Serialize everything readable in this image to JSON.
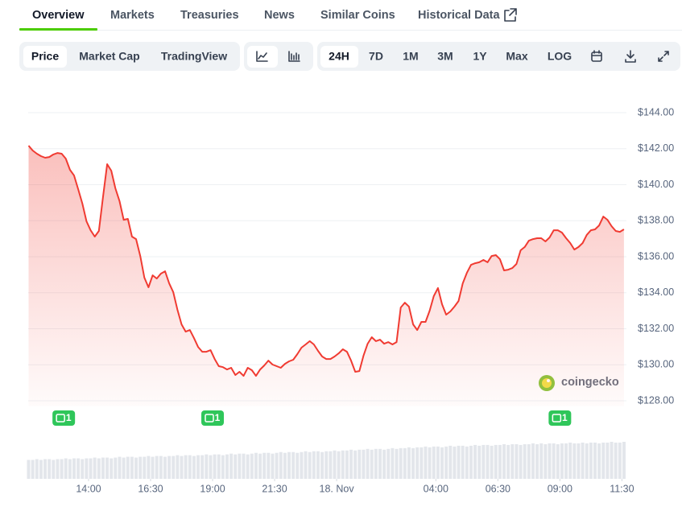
{
  "tabs": [
    "Overview",
    "Markets",
    "Treasuries",
    "News",
    "Similar Coins",
    "Historical Data"
  ],
  "toolbar": {
    "views": [
      "Price",
      "Market Cap",
      "TradingView"
    ],
    "ranges": [
      "24H",
      "7D",
      "1M",
      "3M",
      "1Y",
      "Max"
    ],
    "scale": "LOG"
  },
  "chart_data": {
    "type": "line",
    "x": [
      695,
      705,
      715,
      725,
      735,
      745,
      755,
      765,
      775,
      785,
      795,
      805,
      815,
      825,
      835,
      845,
      855,
      865,
      875,
      885,
      895,
      905,
      915,
      925,
      935,
      945,
      955,
      965,
      975,
      985,
      995,
      1005,
      1015,
      1025,
      1035,
      1045,
      1055,
      1065,
      1075,
      1085,
      1095,
      1105,
      1115,
      1125,
      1135,
      1145,
      1155,
      1165,
      1175,
      1185,
      1195,
      1205,
      1215,
      1225,
      1235,
      1245,
      1255,
      1265,
      1275,
      1285,
      1295,
      1305,
      1315,
      1325,
      1335,
      1345,
      1355,
      1365,
      1375,
      1385,
      1395,
      1405,
      1415,
      1425,
      1435,
      1445,
      1455,
      1465,
      1475,
      1485,
      1495,
      1505,
      1515,
      1525,
      1535,
      1545,
      1555,
      1565,
      1575,
      1585,
      1595,
      1605,
      1615,
      1625,
      1635,
      1645,
      1655,
      1665,
      1675,
      1685,
      1695,
      1705,
      1715,
      1725,
      1735,
      1745,
      1755,
      1765,
      1775,
      1785,
      1795,
      1805,
      1815,
      1825,
      1835,
      1845,
      1855,
      1865,
      1875,
      1885,
      1895,
      1905,
      1915,
      1925,
      1935,
      1945,
      1955,
      1965,
      1975,
      1985,
      1995,
      2005,
      2015,
      2025,
      2035,
      2045,
      2055,
      2065,
      2075,
      2085,
      2095,
      2105,
      2115,
      2125,
      2135
    ],
    "series": [
      {
        "color": "#f03b32",
        "values": [
          142.17,
          141.9,
          141.72,
          141.59,
          141.5,
          141.54,
          141.68,
          141.76,
          141.72,
          141.45,
          140.83,
          140.51,
          139.75,
          138.95,
          137.97,
          137.47,
          137.12,
          137.43,
          139.31,
          141.14,
          140.78,
          139.8,
          139.08,
          138.05,
          138.1,
          137.12,
          136.98,
          136.04,
          134.84,
          134.3,
          134.97,
          134.79,
          135.06,
          135.19,
          134.52,
          134.03,
          133.05,
          132.24,
          131.84,
          131.93,
          131.48,
          130.99,
          130.72,
          130.72,
          130.81,
          130.32,
          129.92,
          129.87,
          129.74,
          129.83,
          129.43,
          129.61,
          129.38,
          129.83,
          129.7,
          129.38,
          129.74,
          129.96,
          130.23,
          130.01,
          129.92,
          129.83,
          130.05,
          130.19,
          130.28,
          130.59,
          130.95,
          131.13,
          131.31,
          131.13,
          130.77,
          130.46,
          130.32,
          130.32,
          130.46,
          130.63,
          130.86,
          130.72,
          130.23,
          129.61,
          129.65,
          130.5,
          131.17,
          131.53,
          131.31,
          131.39,
          131.17,
          131.26,
          131.13,
          131.26,
          133.18,
          133.45,
          133.23,
          132.24,
          131.93,
          132.38,
          132.38,
          133.0,
          133.81,
          134.26,
          133.36,
          132.78,
          132.96,
          133.23,
          133.54,
          134.52,
          135.1,
          135.55,
          135.64,
          135.69,
          135.82,
          135.69,
          136.04,
          136.09,
          135.86,
          135.24,
          135.28,
          135.37,
          135.6,
          136.36,
          136.54,
          136.89,
          136.98,
          137.03,
          137.03,
          136.85,
          137.07,
          137.47,
          137.47,
          137.34,
          137.03,
          136.76,
          136.4,
          136.54,
          136.76,
          137.21,
          137.47,
          137.52,
          137.74,
          138.23,
          138.05,
          137.7,
          137.43,
          137.38,
          137.52
        ]
      }
    ],
    "xlim": [
      694,
      2139
    ],
    "ylim": [
      127.7,
      144.9
    ],
    "xticks": [
      {
        "value": 840,
        "label": "14:00"
      },
      {
        "value": 990,
        "label": "16:30"
      },
      {
        "value": 1140,
        "label": "19:00"
      },
      {
        "value": 1290,
        "label": "21:30"
      },
      {
        "value": 1440,
        "label": "18. Nov"
      },
      {
        "value": 1680,
        "label": "04:00"
      },
      {
        "value": 1830,
        "label": "06:30"
      },
      {
        "value": 1980,
        "label": "09:00"
      },
      {
        "value": 2130,
        "label": "11:30"
      }
    ],
    "yticks": [
      {
        "value": 128,
        "label": "$128.00"
      },
      {
        "value": 130,
        "label": "$130.00"
      },
      {
        "value": 132,
        "label": "$132.00"
      },
      {
        "value": 134,
        "label": "$134.00"
      },
      {
        "value": 136,
        "label": "$136.00"
      },
      {
        "value": 138,
        "label": "$138.00"
      },
      {
        "value": 140,
        "label": "$140.00"
      },
      {
        "value": 142,
        "label": "$142.00"
      },
      {
        "value": 144,
        "label": "$144.00"
      }
    ],
    "grid": true,
    "volume": {
      "color": "#e3e6eb",
      "values": [
        24,
        24,
        25,
        24,
        25,
        25,
        24,
        25,
        25,
        26,
        25,
        26,
        26,
        25,
        26,
        26,
        27,
        26,
        27,
        27,
        26,
        27,
        28,
        27,
        28,
        28,
        27,
        28,
        28,
        29,
        28,
        29,
        29,
        28,
        29,
        29,
        30,
        29,
        30,
        30,
        29,
        30,
        30,
        31,
        30,
        31,
        31,
        30,
        31,
        32,
        31,
        32,
        32,
        31,
        32,
        33,
        32,
        33,
        33,
        32,
        33,
        34,
        33,
        34,
        34,
        33,
        34,
        35,
        34,
        35,
        35,
        34,
        35,
        35,
        36,
        35,
        36,
        36,
        37,
        36,
        37,
        37,
        38,
        37,
        38,
        38,
        37,
        38,
        39,
        38,
        39,
        39,
        40,
        39,
        40,
        40,
        41,
        40,
        41,
        41,
        40,
        41,
        42,
        41,
        42,
        42,
        41,
        42,
        43,
        42,
        43,
        43,
        42,
        43,
        43,
        44,
        43,
        44,
        44,
        43,
        44,
        44,
        45,
        44,
        45,
        44,
        45,
        45,
        44,
        45,
        45,
        46,
        45,
        45,
        46,
        45,
        46,
        46,
        45,
        46,
        46,
        47,
        46,
        46,
        47
      ]
    },
    "events": {
      "color": "#2fc65a",
      "x": [
        780,
        1140,
        1980
      ],
      "values": [
        1,
        1,
        1
      ]
    },
    "watermark": "coingecko"
  }
}
